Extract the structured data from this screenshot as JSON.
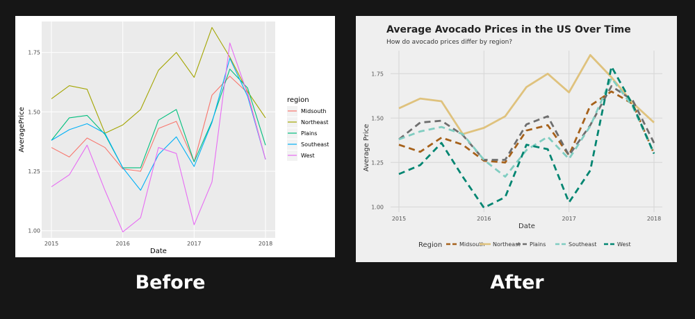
{
  "captions": {
    "before": "Before",
    "after": "After"
  },
  "before_chart": {
    "xlabel": "Date",
    "ylabel": "AveragePrice",
    "legend_title": "region",
    "legend_position": "right",
    "grid": true,
    "colors": {
      "Midsouth": "#F8766D",
      "Northeast": "#A3A500",
      "Plains": "#00BF7D",
      "Southeast": "#00B0F6",
      "West": "#E76BF3"
    },
    "panel_background": "#EBEBEB"
  },
  "after_chart": {
    "title": "Average Avocado Prices in the US Over Time",
    "subtitle": "How do avocado prices differ by region?",
    "xlabel": "Date",
    "ylabel": "Average Price",
    "legend_title": "Region",
    "legend_position": "bottom",
    "grid": true,
    "colors": {
      "Midsouth": "#A6611A",
      "Northeast": "#DFC27D",
      "Plains": "#6E6E6E",
      "Southeast": "#80CDC1",
      "West": "#018571"
    },
    "dashed_series": [
      "Midsouth",
      "Plains",
      "Southeast",
      "West"
    ],
    "panel_background": "#EFEFEF"
  },
  "chart_data": {
    "type": "line",
    "x": [
      "2015-01",
      "2015-04",
      "2015-07",
      "2015-10",
      "2016-01",
      "2016-04",
      "2016-07",
      "2016-10",
      "2017-01",
      "2017-04",
      "2017-07",
      "2017-10",
      "2018-01"
    ],
    "xticks": [
      "2015",
      "2016",
      "2017",
      "2018"
    ],
    "yticks": [
      "1.00",
      "1.25",
      "1.50",
      "1.75"
    ],
    "ylim": [
      0.97,
      1.88
    ],
    "series": [
      {
        "name": "Midsouth",
        "values": [
          1.35,
          1.31,
          1.39,
          1.35,
          1.26,
          1.25,
          1.43,
          1.46,
          1.29,
          1.57,
          1.65,
          1.58,
          1.3
        ]
      },
      {
        "name": "Northeast",
        "values": [
          1.555,
          1.61,
          1.595,
          1.41,
          1.445,
          1.51,
          1.675,
          1.75,
          1.645,
          1.855,
          1.73,
          1.585,
          1.475
        ]
      },
      {
        "name": "Plains",
        "values": [
          1.38,
          1.475,
          1.485,
          1.405,
          1.265,
          1.265,
          1.465,
          1.51,
          1.29,
          1.46,
          1.68,
          1.6,
          1.36
        ]
      },
      {
        "name": "Southeast",
        "values": [
          1.38,
          1.425,
          1.45,
          1.41,
          1.265,
          1.17,
          1.32,
          1.395,
          1.27,
          1.455,
          1.725,
          1.565,
          1.3
        ]
      },
      {
        "name": "West",
        "values": [
          1.185,
          1.235,
          1.36,
          1.17,
          0.995,
          1.055,
          1.35,
          1.325,
          1.025,
          1.205,
          1.79,
          1.575,
          1.3
        ]
      }
    ]
  }
}
